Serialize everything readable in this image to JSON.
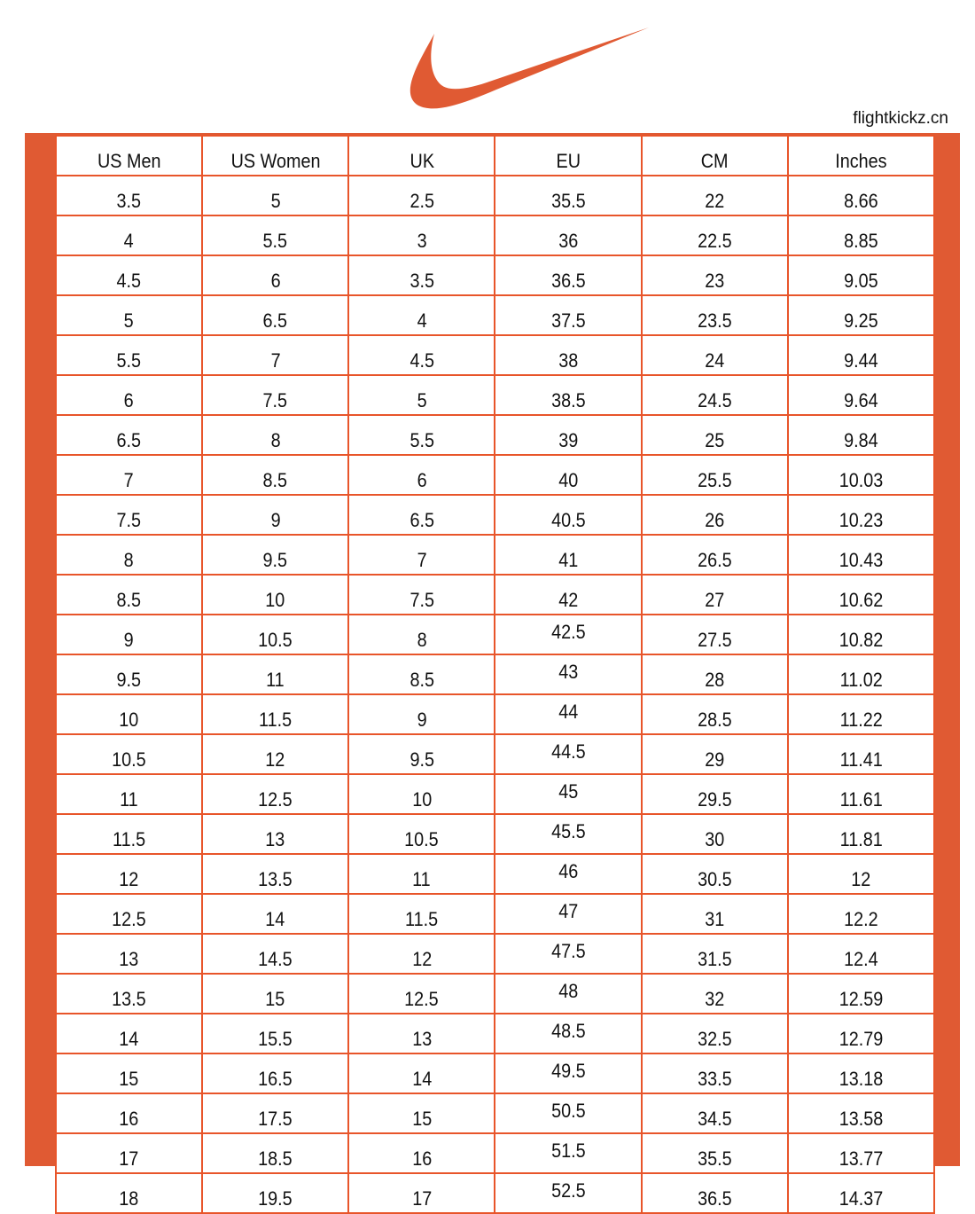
{
  "brand": {
    "logo": "Nike swoosh",
    "color": "#E05A33"
  },
  "site": "flightkickz.cn",
  "table": {
    "headers": [
      "US Men",
      "US Women",
      "UK",
      "EU",
      "CM",
      "Inches"
    ],
    "rows": [
      [
        "3.5",
        "5",
        "2.5",
        "35.5",
        "22",
        "8.66"
      ],
      [
        "4",
        "5.5",
        "3",
        "36",
        "22.5",
        "8.85"
      ],
      [
        "4.5",
        "6",
        "3.5",
        "36.5",
        "23",
        "9.05"
      ],
      [
        "5",
        "6.5",
        "4",
        "37.5",
        "23.5",
        "9.25"
      ],
      [
        "5.5",
        "7",
        "4.5",
        "38",
        "24",
        "9.44"
      ],
      [
        "6",
        "7.5",
        "5",
        "38.5",
        "24.5",
        "9.64"
      ],
      [
        "6.5",
        "8",
        "5.5",
        "39",
        "25",
        "9.84"
      ],
      [
        "7",
        "8.5",
        "6",
        "40",
        "25.5",
        "10.03"
      ],
      [
        "7.5",
        "9",
        "6.5",
        "40.5",
        "26",
        "10.23"
      ],
      [
        "8",
        "9.5",
        "7",
        "41",
        "26.5",
        "10.43"
      ],
      [
        "8.5",
        "10",
        "7.5",
        "42",
        "27",
        "10.62"
      ],
      [
        "9",
        "10.5",
        "8",
        "42.5",
        "27.5",
        "10.82"
      ],
      [
        "9.5",
        "11",
        "8.5",
        "43",
        "28",
        "11.02"
      ],
      [
        "10",
        "11.5",
        "9",
        "44",
        "28.5",
        "11.22"
      ],
      [
        "10.5",
        "12",
        "9.5",
        "44.5",
        "29",
        "11.41"
      ],
      [
        "11",
        "12.5",
        "10",
        "45",
        "29.5",
        "11.61"
      ],
      [
        "11.5",
        "13",
        "10.5",
        "45.5",
        "30",
        "11.81"
      ],
      [
        "12",
        "13.5",
        "11",
        "46",
        "30.5",
        "12"
      ],
      [
        "12.5",
        "14",
        "11.5",
        "47",
        "31",
        "12.2"
      ],
      [
        "13",
        "14.5",
        "12",
        "47.5",
        "31.5",
        "12.4"
      ],
      [
        "13.5",
        "15",
        "12.5",
        "48",
        "32",
        "12.59"
      ],
      [
        "14",
        "15.5",
        "13",
        "48.5",
        "32.5",
        "12.79"
      ],
      [
        "15",
        "16.5",
        "14",
        "49.5",
        "33.5",
        "13.18"
      ],
      [
        "16",
        "17.5",
        "15",
        "50.5",
        "34.5",
        "13.58"
      ],
      [
        "17",
        "18.5",
        "16",
        "51.5",
        "35.5",
        "13.77"
      ],
      [
        "18",
        "19.5",
        "17",
        "52.5",
        "36.5",
        "14.37"
      ]
    ]
  }
}
